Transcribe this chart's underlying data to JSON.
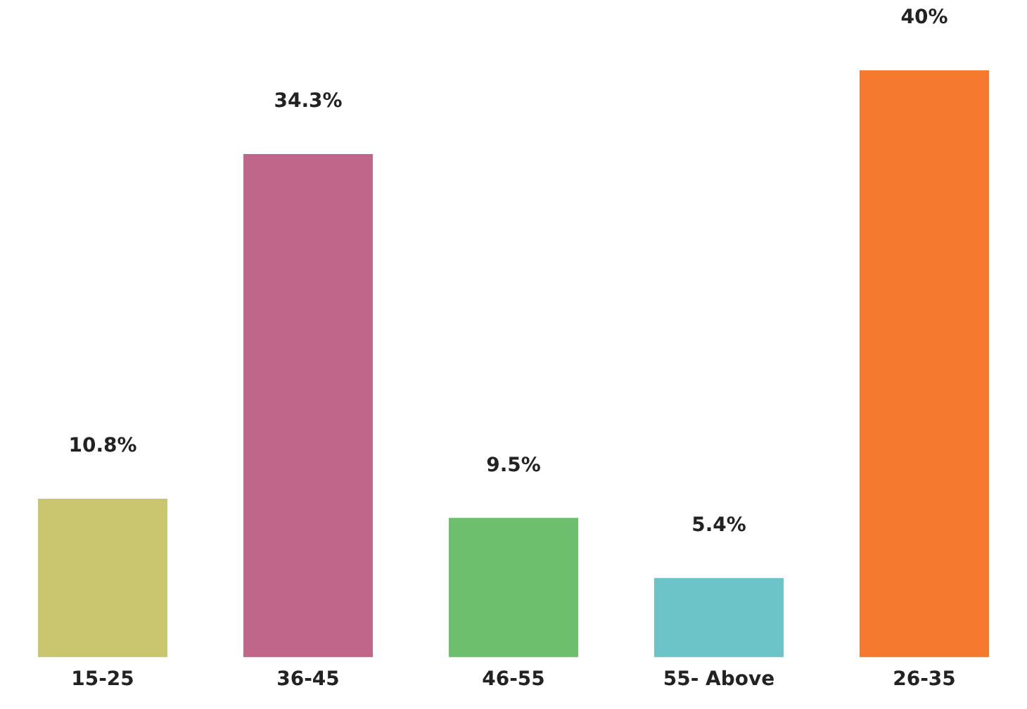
{
  "chart_data": {
    "type": "bar",
    "categories": [
      "15-25",
      "36-45",
      "46-55",
      "55- Above",
      "26-35"
    ],
    "values": [
      10.8,
      34.3,
      9.5,
      5.4,
      40
    ],
    "colors": [
      "#c9c66f",
      "#c0668a",
      "#6dbf6d",
      "#6cc3c8",
      "#f5792f"
    ],
    "value_labels": [
      "10.8%",
      "34.3%",
      "9.5%",
      "5.4%",
      "40%"
    ],
    "grid": false,
    "legend": false,
    "tick_labels": "x"
  }
}
